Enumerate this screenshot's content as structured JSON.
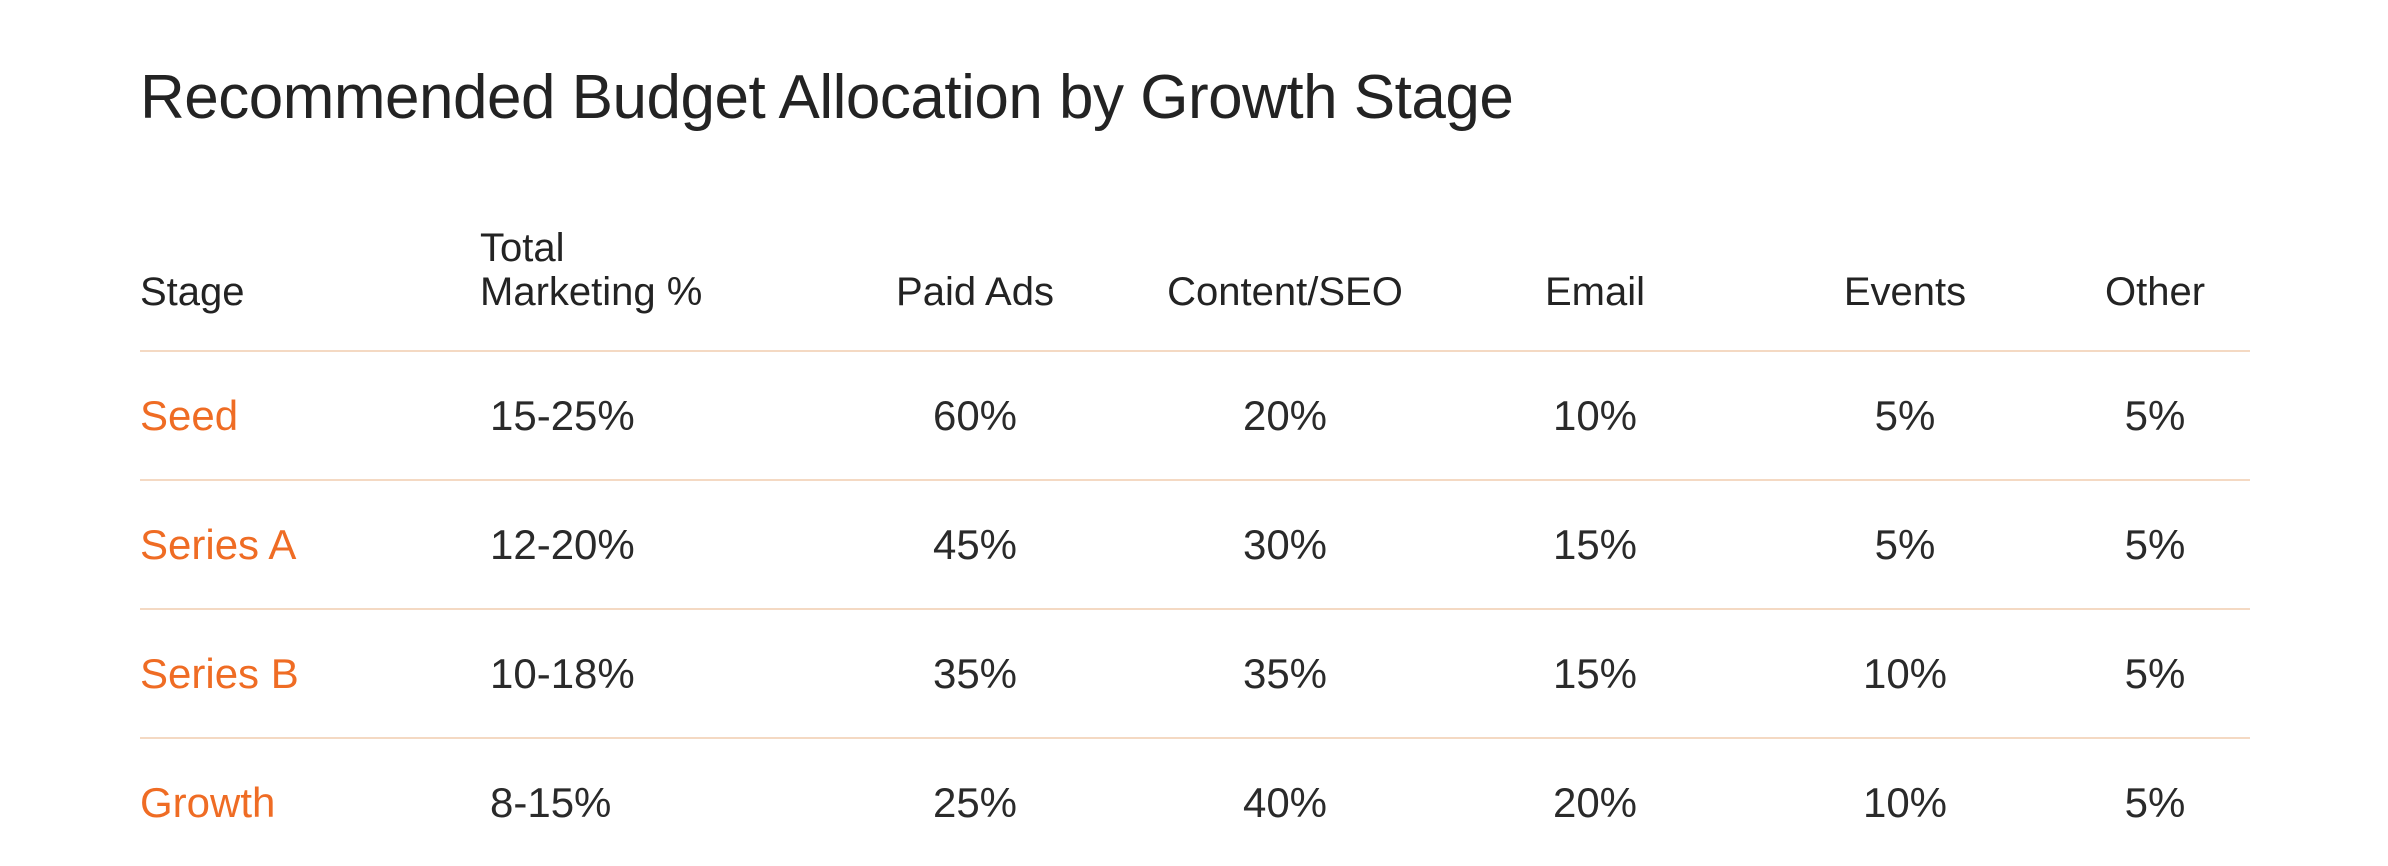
{
  "title": "Recommended Budget Allocation by Growth Stage",
  "colors": {
    "accent": "#ef6c24",
    "divider": "#f4d9c3",
    "text": "#232323"
  },
  "table": {
    "headers": {
      "stage": "Stage",
      "total_line1": "Total",
      "total_line2": "Marketing %",
      "paid_ads": "Paid Ads",
      "content_seo": "Content/SEO",
      "email": "Email",
      "events": "Events",
      "other": "Other"
    },
    "rows": [
      {
        "stage": "Seed",
        "total": "15-25%",
        "paid_ads": "60%",
        "content_seo": "20%",
        "email": "10%",
        "events": "5%",
        "other": "5%"
      },
      {
        "stage": "Series A",
        "total": "12-20%",
        "paid_ads": "45%",
        "content_seo": "30%",
        "email": "15%",
        "events": "5%",
        "other": "5%"
      },
      {
        "stage": "Series B",
        "total": "10-18%",
        "paid_ads": "35%",
        "content_seo": "35%",
        "email": "15%",
        "events": "10%",
        "other": "5%"
      },
      {
        "stage": "Growth",
        "total": "8-15%",
        "paid_ads": "25%",
        "content_seo": "40%",
        "email": "20%",
        "events": "10%",
        "other": "5%"
      }
    ]
  }
}
